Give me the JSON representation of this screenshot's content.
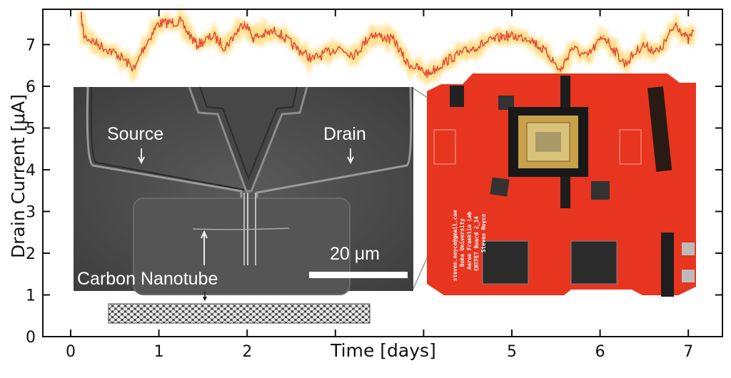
{
  "chart_data": {
    "type": "line",
    "title": "",
    "xlabel": "Time [days]",
    "ylabel": "Drain Current [μA]",
    "xlim": [
      -0.3,
      7.4
    ],
    "ylim": [
      0,
      7.85
    ],
    "x_tick_labels": [
      "0",
      "1",
      "2",
      "5",
      "6",
      "7"
    ],
    "x_tick_positions": [
      0,
      1,
      2,
      3,
      4,
      5,
      6,
      7
    ],
    "y_tick_labels": [
      "0",
      "1",
      "2",
      "3",
      "4",
      "5",
      "6",
      "7"
    ],
    "grid": false,
    "series": [
      {
        "color": "#e0503a",
        "glow_color": "#ffd25a",
        "x": [
          0.12,
          0.15,
          0.28,
          0.54,
          0.73,
          0.8,
          0.99,
          1.24,
          1.43,
          1.62,
          1.75,
          1.97,
          2.07,
          2.33,
          2.55,
          2.74,
          3.03,
          3.22,
          3.41,
          3.67,
          3.8,
          4.05,
          4.29,
          4.57,
          4.92,
          5.2,
          5.42,
          5.55,
          5.68,
          5.85,
          6.04,
          6.28,
          6.48,
          6.67,
          6.86,
          7.0,
          7.06
        ],
        "y": [
          7.67,
          7.21,
          7.04,
          6.75,
          6.41,
          6.82,
          7.5,
          7.55,
          6.99,
          7.21,
          6.93,
          7.55,
          7.16,
          7.33,
          6.93,
          6.65,
          6.93,
          6.75,
          7.26,
          7.1,
          6.58,
          6.3,
          6.65,
          6.93,
          7.21,
          7.16,
          6.75,
          6.36,
          6.93,
          6.7,
          7.21,
          6.53,
          6.99,
          6.82,
          7.5,
          7.1,
          7.33
        ]
      }
    ]
  },
  "sem_inset": {
    "source_label": "Source",
    "drain_label": "Drain",
    "nanotube_label": "Carbon Nanotube",
    "scale_bar_label": "20 μm"
  },
  "pcb_inset": {
    "silk_name": "Steven Noyce",
    "silk_board": "CNTFET Board 2_14",
    "silk_lab": "Aaron Franklin Lab",
    "silk_univ": "Duke University",
    "silk_email": "steven.noyce@gmail.com",
    "board_color": "#e8351f"
  }
}
